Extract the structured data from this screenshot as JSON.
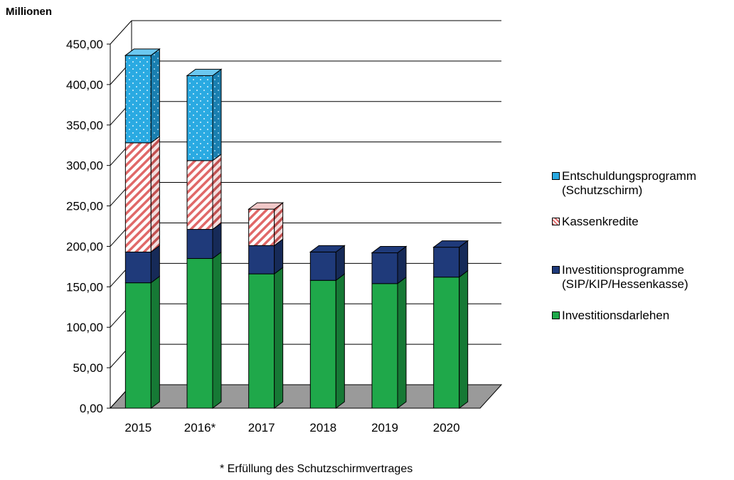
{
  "chart_data": {
    "type": "bar",
    "stacked": true,
    "three_d": true,
    "ylabel": "Millionen",
    "ylim": [
      0,
      450
    ],
    "ytick_step": 50,
    "ytick_labels": [
      "0,00",
      "50,00",
      "100,00",
      "150,00",
      "200,00",
      "250,00",
      "300,00",
      "350,00",
      "400,00",
      "450,00"
    ],
    "categories": [
      "2015",
      "2016*",
      "2017",
      "2018",
      "2019",
      "2020"
    ],
    "grid": true,
    "legend_position": "right",
    "series": [
      {
        "name": "Investitionsdarlehen",
        "values": [
          155,
          185,
          166,
          158,
          154,
          162
        ],
        "color": "#1fa84a",
        "pattern": "solid"
      },
      {
        "name": "Investitionsprogramme (SIP/KIP/Hessenkasse)",
        "values": [
          38,
          36,
          35,
          35,
          38,
          37
        ],
        "color": "#1f3a7a",
        "pattern": "solid"
      },
      {
        "name": "Kassenkredite",
        "values": [
          135,
          85,
          45,
          0,
          0,
          0
        ],
        "color": "#e88080",
        "pattern": "hatch"
      },
      {
        "name": "Entschuldungsprogramm (Schutzschirm)",
        "values": [
          108,
          105,
          0,
          0,
          0,
          0
        ],
        "color": "#2aaae2",
        "pattern": "dots"
      }
    ],
    "legend": [
      {
        "line1": "Entschuldungsprogramm",
        "line2": "(Schutzschirm)",
        "color": "#2aaae2",
        "pattern": "dots"
      },
      {
        "line1": "Kassenkredite",
        "line2": "",
        "color": "#e88080",
        "pattern": "hatch"
      },
      {
        "line1": "Investitionsprogramme",
        "line2": "(SIP/KIP/Hessenkasse)",
        "color": "#1f3a7a",
        "pattern": "solid"
      },
      {
        "line1": "Investitionsdarlehen",
        "line2": "",
        "color": "#1fa84a",
        "pattern": "solid"
      }
    ],
    "footnote": "*  Erfüllung des Schutzschirmvertrages"
  }
}
